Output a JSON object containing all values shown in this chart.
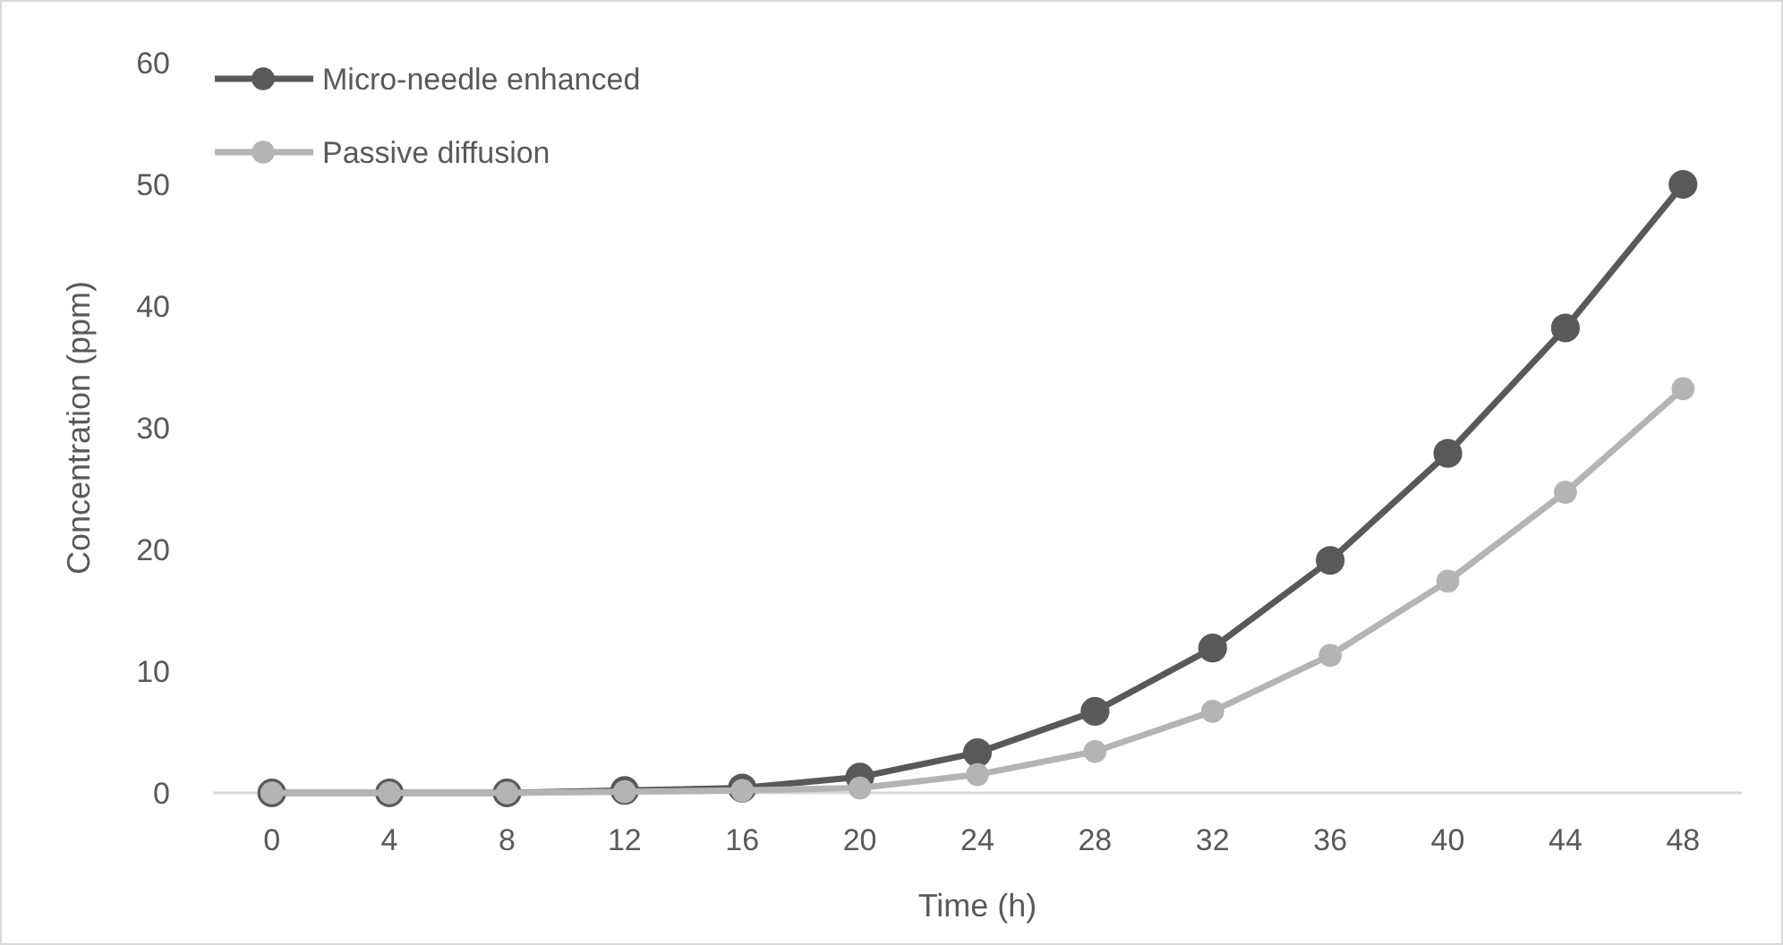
{
  "chart_data": {
    "type": "line",
    "xlabel": "Time (h)",
    "ylabel": "Concentration (ppm)",
    "x": [
      0,
      4,
      8,
      12,
      16,
      20,
      24,
      28,
      32,
      36,
      40,
      44,
      48
    ],
    "xlim": [
      -2,
      50
    ],
    "xticks": [
      0,
      4,
      8,
      12,
      16,
      20,
      24,
      28,
      32,
      36,
      40,
      44,
      48
    ],
    "series": [
      {
        "name": "Micro-needle enhanced",
        "color": "#595959",
        "values": [
          0,
          0,
          0,
          0.2,
          0.4,
          1.3,
          3.3,
          6.7,
          11.9,
          19.1,
          27.9,
          38.2,
          50
        ]
      },
      {
        "name": "Passive diffusion",
        "color": "#b4b4b4",
        "values": [
          0,
          0,
          0,
          0.1,
          0.2,
          0.4,
          1.5,
          3.4,
          6.7,
          11.3,
          17.4,
          24.7,
          33.2
        ]
      }
    ],
    "ylim": [
      0,
      60
    ],
    "yticks": [
      0,
      10,
      20,
      30,
      40,
      50,
      60
    ],
    "grid": false,
    "legend": "top left",
    "marker": "circle",
    "line_style": "solid"
  }
}
